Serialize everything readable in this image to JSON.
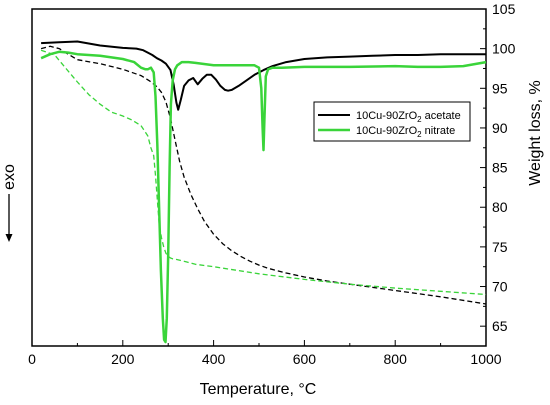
{
  "chart_data": {
    "type": "line",
    "title": "",
    "xlabel": "Temperature, °C",
    "ylabel_right": "Weight loss, %",
    "ylabel_left": "exo",
    "xlim": [
      0,
      1000
    ],
    "ylim_right": [
      62.5,
      105
    ],
    "x_ticks": [
      0,
      200,
      400,
      600,
      800,
      1000
    ],
    "y_ticks_right": [
      65,
      70,
      75,
      80,
      85,
      90,
      95,
      100,
      105
    ],
    "legend_position": "center-right",
    "series": [
      {
        "name_prefix": "10Cu-90ZrO",
        "name_sub": "2",
        "name_suffix": " acetate",
        "kind": "DTA",
        "style": "solid",
        "color": "#000000",
        "x": [
          20,
          60,
          100,
          150,
          200,
          230,
          245,
          255,
          265,
          275,
          285,
          295,
          305,
          312,
          318,
          322,
          328,
          335,
          345,
          355,
          365,
          375,
          385,
          395,
          405,
          415,
          425,
          432,
          440,
          455,
          470,
          490,
          510,
          530,
          560,
          600,
          650,
          700,
          750,
          800,
          850,
          900,
          950,
          1000
        ],
        "y": [
          100.7,
          100.8,
          100.9,
          100.4,
          100.1,
          100.0,
          99.8,
          99.5,
          99.2,
          98.8,
          98.5,
          98.1,
          97.3,
          95.5,
          93.2,
          92.3,
          93.6,
          95.3,
          96.0,
          96.3,
          95.5,
          96.2,
          96.7,
          96.7,
          96.1,
          95.3,
          94.8,
          94.7,
          94.8,
          95.3,
          95.9,
          96.7,
          97.3,
          97.8,
          98.3,
          98.7,
          98.9,
          99.0,
          99.1,
          99.2,
          99.2,
          99.3,
          99.3,
          99.3
        ]
      },
      {
        "name_prefix": "10Cu-90ZrO",
        "name_sub": "2",
        "name_suffix": " nitrate",
        "kind": "DTA",
        "style": "solid",
        "color": "#3ad43a",
        "x": [
          20,
          40,
          60,
          80,
          100,
          150,
          200,
          225,
          240,
          250,
          255,
          262,
          268,
          272,
          276,
          280,
          284,
          288,
          291,
          294,
          297,
          300,
          303,
          306,
          310,
          315,
          320,
          330,
          345,
          360,
          400,
          450,
          490,
          500,
          505,
          508,
          510,
          512,
          515,
          520,
          530,
          550,
          600,
          700,
          800,
          850,
          900,
          950,
          1000
        ],
        "y": [
          98.8,
          99.3,
          99.6,
          99.5,
          99.3,
          99.1,
          98.7,
          98.3,
          97.6,
          97.4,
          97.4,
          97.6,
          97.0,
          94.0,
          88.0,
          80.0,
          72.0,
          66.0,
          63.3,
          63.0,
          66.0,
          74.0,
          85.0,
          93.0,
          96.0,
          97.4,
          97.9,
          98.3,
          98.3,
          98.2,
          97.9,
          97.9,
          97.9,
          97.6,
          95.0,
          90.0,
          87.2,
          91.0,
          96.5,
          97.4,
          97.6,
          97.6,
          97.7,
          97.7,
          97.8,
          97.7,
          97.7,
          97.8,
          98.3
        ]
      },
      {
        "kind": "TG",
        "style": "dashed",
        "color": "#000000",
        "x": [
          20,
          40,
          60,
          80,
          100,
          150,
          200,
          240,
          260,
          275,
          285,
          295,
          305,
          315,
          325,
          335,
          350,
          365,
          380,
          400,
          420,
          440,
          460,
          480,
          500,
          520,
          540,
          560,
          600,
          650,
          700,
          800,
          900,
          1000
        ],
        "y": [
          100.0,
          100.3,
          100.0,
          99.3,
          98.6,
          98.1,
          97.4,
          96.6,
          95.9,
          95.2,
          94.5,
          93.3,
          91.2,
          88.5,
          85.8,
          83.8,
          81.6,
          79.8,
          78.2,
          76.6,
          75.4,
          74.5,
          73.8,
          73.2,
          72.7,
          72.3,
          72.0,
          71.7,
          71.2,
          70.7,
          70.3,
          69.5,
          68.7,
          67.8
        ]
      },
      {
        "kind": "TG",
        "style": "dashed",
        "color": "#3ad43a",
        "x": [
          20,
          50,
          75,
          100,
          125,
          150,
          175,
          200,
          220,
          240,
          255,
          262,
          268,
          272,
          276,
          280,
          285,
          290,
          295,
          300,
          305,
          310,
          320,
          340,
          360,
          400,
          500,
          600,
          700,
          800,
          900,
          1000
        ],
        "y": [
          99.8,
          99.2,
          97.5,
          95.8,
          94.2,
          93.0,
          92.0,
          91.5,
          91.0,
          90.3,
          89.0,
          87.5,
          86.5,
          84.0,
          81.0,
          78.0,
          76.2,
          75.0,
          74.2,
          73.8,
          73.6,
          73.5,
          73.4,
          73.1,
          72.8,
          72.5,
          71.6,
          70.9,
          70.3,
          69.8,
          69.4,
          69.0
        ]
      }
    ]
  }
}
